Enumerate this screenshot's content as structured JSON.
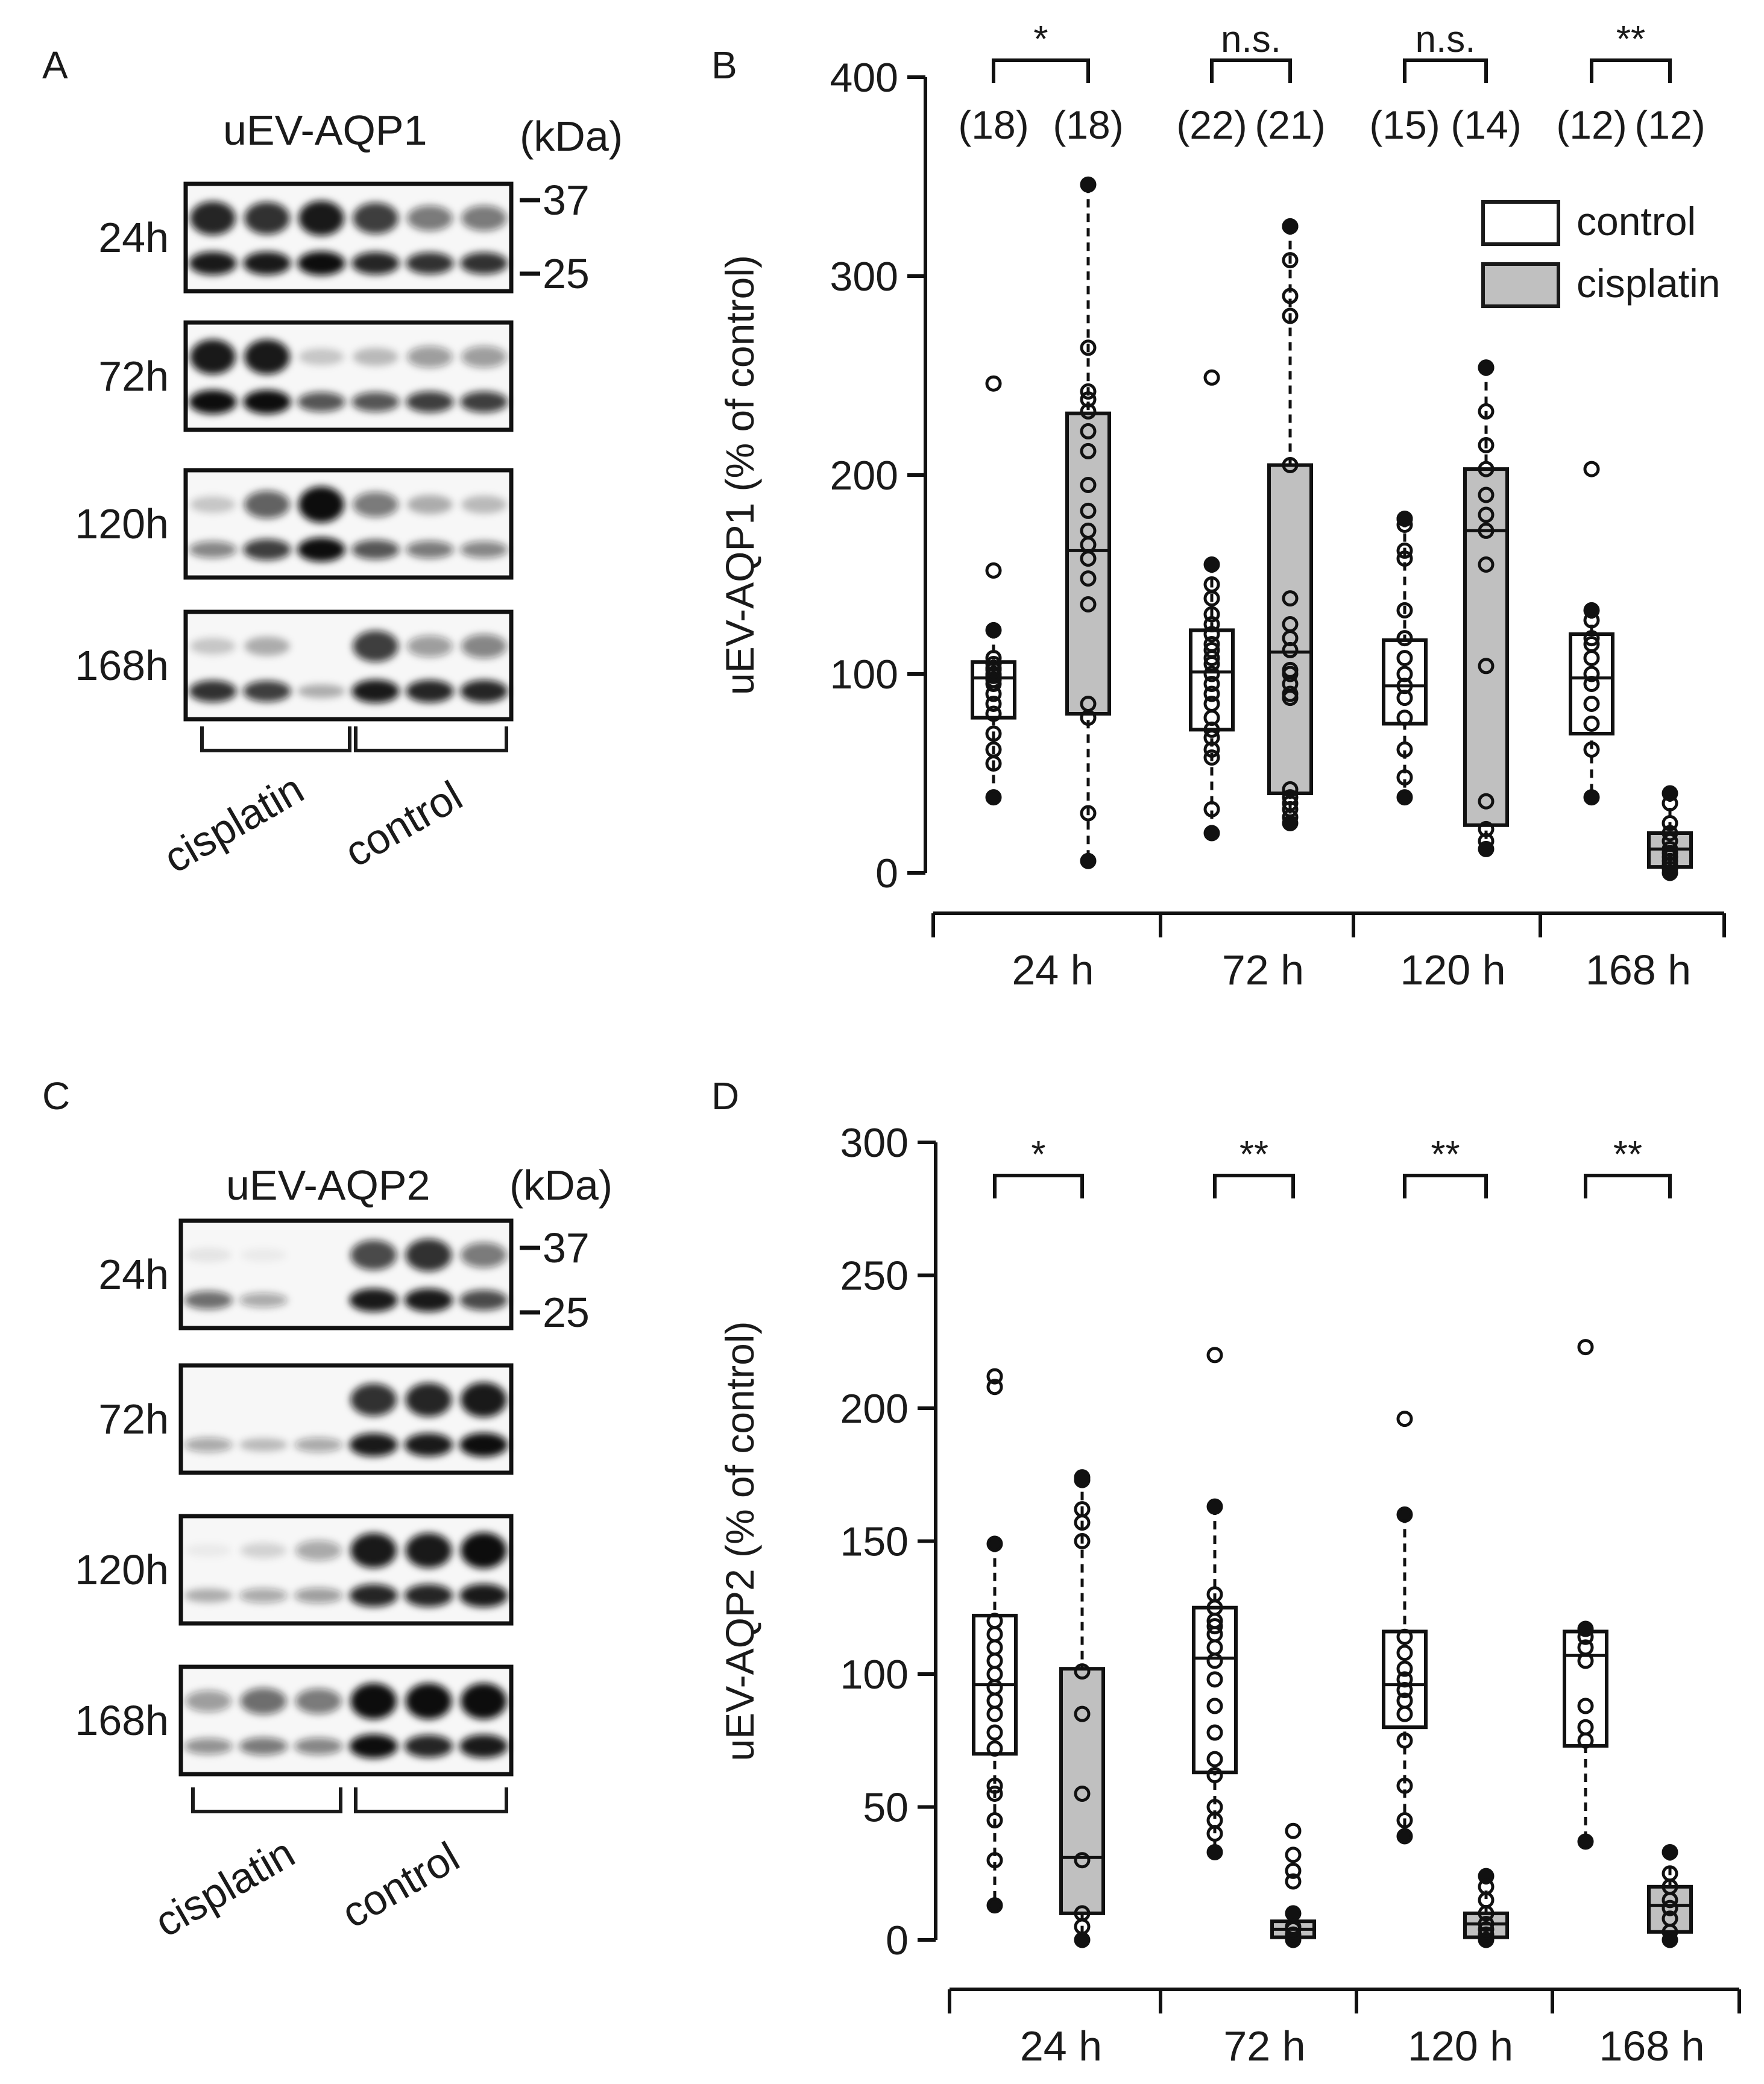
{
  "panels": {
    "A": {
      "letter": "A",
      "title": "uEV-AQP1",
      "kda_label": "(kDa)",
      "markers": [
        "37",
        "25"
      ],
      "rows": [
        "24h",
        "72h",
        "120h",
        "168h"
      ],
      "groups": [
        "cisplatin",
        "control"
      ]
    },
    "C": {
      "letter": "C",
      "title": "uEV-AQP2",
      "kda_label": "(kDa)",
      "markers": [
        "37",
        "25"
      ],
      "rows": [
        "24h",
        "72h",
        "120h",
        "168h"
      ],
      "groups": [
        "cisplatin",
        "control"
      ]
    }
  },
  "legend": {
    "control": "control",
    "cisplatin": "cisplatin",
    "control_color": "#ffffff",
    "cisplatin_color": "#c0c0c0"
  },
  "chart_data": [
    {
      "panel": "B",
      "type": "box",
      "ylabel": "uEV-AQP1 (% of control)",
      "ylim": [
        0,
        400
      ],
      "yticks": [
        0,
        100,
        200,
        300,
        400
      ],
      "categories": [
        "24 h",
        "72 h",
        "120 h",
        "168 h"
      ],
      "significance": [
        "*",
        "n.s.",
        "n.s.",
        "**"
      ],
      "n_labels": [
        [
          "(18)",
          "(18)"
        ],
        [
          "(22)",
          "(21)"
        ],
        [
          "(15)",
          "(14)"
        ],
        [
          "(12)",
          "(12)"
        ]
      ],
      "series": [
        {
          "name": "control",
          "boxes": [
            {
              "q1": 78,
              "median": 98,
              "q3": 106,
              "whisker_low": 38,
              "whisker_high": 122,
              "points": [
                38,
                55,
                62,
                70,
                80,
                85,
                90,
                95,
                97,
                99,
                100,
                102,
                103,
                105,
                108,
                122,
                152,
                246
              ]
            },
            {
              "q1": 72,
              "median": 101,
              "q3": 122,
              "whisker_low": 20,
              "whisker_high": 155,
              "points": [
                20,
                32,
                58,
                62,
                68,
                72,
                78,
                85,
                90,
                95,
                100,
                105,
                108,
                112,
                115,
                120,
                125,
                130,
                138,
                145,
                155,
                249
              ]
            },
            {
              "q1": 75,
              "median": 94,
              "q3": 117,
              "whisker_low": 38,
              "whisker_high": 178,
              "points": [
                38,
                48,
                62,
                78,
                88,
                94,
                100,
                108,
                118,
                132,
                158,
                162,
                175,
                178,
                178
              ]
            },
            {
              "q1": 70,
              "median": 98,
              "q3": 120,
              "whisker_low": 38,
              "whisker_high": 132,
              "points": [
                38,
                62,
                75,
                85,
                95,
                100,
                108,
                115,
                118,
                127,
                132,
                203
              ]
            }
          ]
        },
        {
          "name": "cisplatin",
          "boxes": [
            {
              "q1": 80,
              "median": 162,
              "q3": 231,
              "whisker_low": 6,
              "whisker_high": 346,
              "points": [
                6,
                30,
                78,
                85,
                135,
                148,
                158,
                165,
                172,
                182,
                195,
                212,
                222,
                232,
                238,
                242,
                264,
                346
              ]
            },
            {
              "q1": 40,
              "median": 111,
              "q3": 205,
              "whisker_low": 25,
              "whisker_high": 325,
              "points": [
                25,
                32,
                38,
                88,
                95,
                102,
                112,
                125,
                138,
                205,
                280,
                290,
                308,
                325,
                325,
                35,
                42,
                28,
                90,
                100,
                118
              ]
            },
            {
              "q1": 24,
              "median": 172,
              "q3": 203,
              "whisker_low": 12,
              "whisker_high": 254,
              "points": [
                12,
                16,
                22,
                36,
                104,
                155,
                172,
                180,
                190,
                203,
                215,
                232,
                254,
                254
              ]
            },
            {
              "q1": 3,
              "median": 12,
              "q3": 20,
              "whisker_low": 0,
              "whisker_high": 40,
              "points": [
                0,
                2,
                4,
                6,
                8,
                10,
                12,
                16,
                20,
                25,
                35,
                40
              ]
            }
          ]
        }
      ]
    },
    {
      "panel": "D",
      "type": "box",
      "ylabel": "uEV-AQP2 (% of control)",
      "ylim": [
        0,
        300
      ],
      "yticks": [
        0,
        50,
        100,
        150,
        200,
        250,
        300
      ],
      "categories": [
        "24 h",
        "72 h",
        "120 h",
        "168 h"
      ],
      "significance": [
        "*",
        "**",
        "**",
        "**"
      ],
      "series": [
        {
          "name": "control",
          "boxes": [
            {
              "q1": 70,
              "median": 96,
              "q3": 122,
              "whisker_low": 13,
              "whisker_high": 149,
              "points": [
                13,
                30,
                45,
                55,
                58,
                72,
                78,
                85,
                90,
                95,
                100,
                105,
                110,
                115,
                120,
                149,
                208,
                212
              ]
            },
            {
              "q1": 63,
              "median": 106,
              "q3": 125,
              "whisker_low": 33,
              "whisker_high": 163,
              "points": [
                33,
                40,
                45,
                50,
                62,
                68,
                78,
                88,
                98,
                105,
                110,
                115,
                118,
                120,
                125,
                130,
                163,
                220
              ]
            },
            {
              "q1": 80,
              "median": 96,
              "q3": 116,
              "whisker_low": 39,
              "whisker_high": 160,
              "points": [
                39,
                45,
                58,
                75,
                85,
                90,
                94,
                98,
                102,
                108,
                114,
                160,
                196
              ]
            },
            {
              "q1": 73,
              "median": 107,
              "q3": 116,
              "whisker_low": 37,
              "whisker_high": 117,
              "points": [
                37,
                75,
                80,
                88,
                105,
                110,
                114,
                117,
                223
              ]
            }
          ]
        },
        {
          "name": "cisplatin",
          "boxes": [
            {
              "q1": 10,
              "median": 31,
              "q3": 102,
              "whisker_low": 0,
              "whisker_high": 174,
              "points": [
                0,
                5,
                10,
                30,
                55,
                85,
                101,
                150,
                157,
                162,
                173,
                174
              ]
            },
            {
              "q1": 1,
              "median": 4,
              "q3": 7,
              "whisker_low": 0,
              "whisker_high": 10,
              "points": [
                0,
                2,
                4,
                5,
                10,
                22,
                26,
                32,
                41
              ]
            },
            {
              "q1": 1,
              "median": 6,
              "q3": 10,
              "whisker_low": 0,
              "whisker_high": 24,
              "points": [
                0,
                2,
                4,
                6,
                10,
                15,
                20,
                24
              ]
            },
            {
              "q1": 3,
              "median": 13,
              "q3": 20,
              "whisker_low": 0,
              "whisker_high": 33,
              "points": [
                0,
                3,
                8,
                12,
                15,
                20,
                25,
                33
              ]
            }
          ]
        }
      ]
    }
  ]
}
